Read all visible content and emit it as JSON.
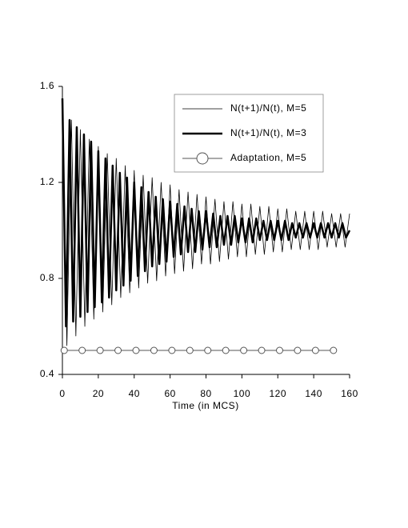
{
  "chart_data": {
    "type": "line",
    "xlabel": "Time (in MCS)",
    "xlim": [
      0,
      160
    ],
    "xticks": [
      0,
      20,
      40,
      60,
      80,
      100,
      120,
      140,
      160
    ],
    "ylim": [
      0.4,
      1.6
    ],
    "yticks": [
      {
        "value": 0.4,
        "label": "0.4"
      },
      {
        "value": 0.8,
        "label": "0.8"
      },
      {
        "value": 1.2,
        "label": "1.2"
      },
      {
        "value": 1.6,
        "label": "1.6"
      }
    ],
    "grid": false,
    "legend": "upper right",
    "series": [
      {
        "name": "N(t+1)/N(t), M=5",
        "color": "#000000",
        "width": 0.8,
        "x": [
          0,
          2.5,
          5,
          7.5,
          10,
          12.5,
          15,
          17.5,
          20,
          22.5,
          25,
          27.5,
          30,
          32.5,
          35,
          37.5,
          40,
          42.5,
          45,
          47.5,
          50,
          52.5,
          55,
          57.5,
          60,
          62.5,
          65,
          67.5,
          70,
          72.5,
          75,
          77.5,
          80,
          82.5,
          85,
          87.5,
          90,
          92.5,
          95,
          97.5,
          100,
          102.5,
          105,
          107.5,
          110,
          112.5,
          115,
          117.5,
          120,
          122.5,
          125,
          127.5,
          130,
          132.5,
          135,
          137.5,
          140,
          142.5,
          145,
          147.5,
          150,
          152.5,
          155,
          157.5,
          160
        ],
        "values": [
          1.5,
          0.52,
          1.46,
          0.56,
          1.42,
          0.6,
          1.38,
          0.63,
          1.35,
          0.66,
          1.32,
          0.69,
          1.3,
          0.72,
          1.27,
          0.74,
          1.25,
          0.76,
          1.23,
          0.78,
          1.22,
          0.79,
          1.2,
          0.81,
          1.19,
          0.82,
          1.17,
          0.83,
          1.16,
          0.84,
          1.15,
          0.86,
          1.14,
          0.86,
          1.13,
          0.87,
          1.12,
          0.88,
          1.12,
          0.89,
          1.11,
          0.89,
          1.11,
          0.9,
          1.1,
          0.9,
          1.1,
          0.91,
          1.09,
          0.91,
          1.09,
          0.92,
          1.08,
          0.92,
          1.08,
          0.92,
          1.08,
          0.92,
          1.08,
          0.93,
          1.07,
          0.93,
          1.07,
          0.93,
          1.07
        ]
      },
      {
        "name": "N(t+1)/N(t), M=3",
        "color": "#000000",
        "width": 2.5,
        "x": [
          0,
          2,
          4,
          6,
          8,
          10,
          12,
          14,
          16,
          18,
          20,
          22,
          24,
          26,
          28,
          30,
          32,
          34,
          36,
          38,
          40,
          42,
          44,
          46,
          48,
          50,
          52,
          54,
          56,
          58,
          60,
          62,
          64,
          66,
          68,
          70,
          72,
          74,
          76,
          78,
          80,
          82,
          84,
          86,
          88,
          90,
          92,
          94,
          96,
          98,
          100,
          102,
          104,
          106,
          108,
          110,
          112,
          114,
          116,
          118,
          120,
          122,
          124,
          126,
          128,
          130,
          132,
          134,
          136,
          138,
          140,
          142,
          144,
          146,
          148,
          150,
          152,
          154,
          156,
          158,
          160
        ],
        "values": [
          1.55,
          0.6,
          1.46,
          0.62,
          1.43,
          0.64,
          1.4,
          0.66,
          1.37,
          0.68,
          1.33,
          0.7,
          1.3,
          0.72,
          1.27,
          0.75,
          1.24,
          0.77,
          1.22,
          0.79,
          1.2,
          0.81,
          1.18,
          0.83,
          1.16,
          0.85,
          1.14,
          0.86,
          1.13,
          0.87,
          1.12,
          0.89,
          1.11,
          0.9,
          1.1,
          0.91,
          1.09,
          0.91,
          1.08,
          0.92,
          1.08,
          0.93,
          1.07,
          0.93,
          1.06,
          0.94,
          1.06,
          0.94,
          1.06,
          0.95,
          1.05,
          0.95,
          1.05,
          0.95,
          1.05,
          0.96,
          1.04,
          0.96,
          1.04,
          0.96,
          1.04,
          0.96,
          1.04,
          0.96,
          1.03,
          0.97,
          1.03,
          0.97,
          1.03,
          0.97,
          1.03,
          0.97,
          1.03,
          0.97,
          1.03,
          0.97,
          1.03,
          0.97,
          1.03,
          0.97,
          1.0
        ]
      },
      {
        "name": "Adaptation, M=5",
        "color": "#555555",
        "width": 1,
        "marker": "circle",
        "x": [
          1,
          11,
          21,
          31,
          41,
          51,
          61,
          71,
          81,
          91,
          101,
          111,
          121,
          131,
          141,
          151
        ],
        "values": [
          0.5,
          0.5,
          0.5,
          0.5,
          0.5,
          0.5,
          0.5,
          0.5,
          0.5,
          0.5,
          0.5,
          0.5,
          0.5,
          0.5,
          0.5,
          0.5
        ]
      }
    ]
  }
}
